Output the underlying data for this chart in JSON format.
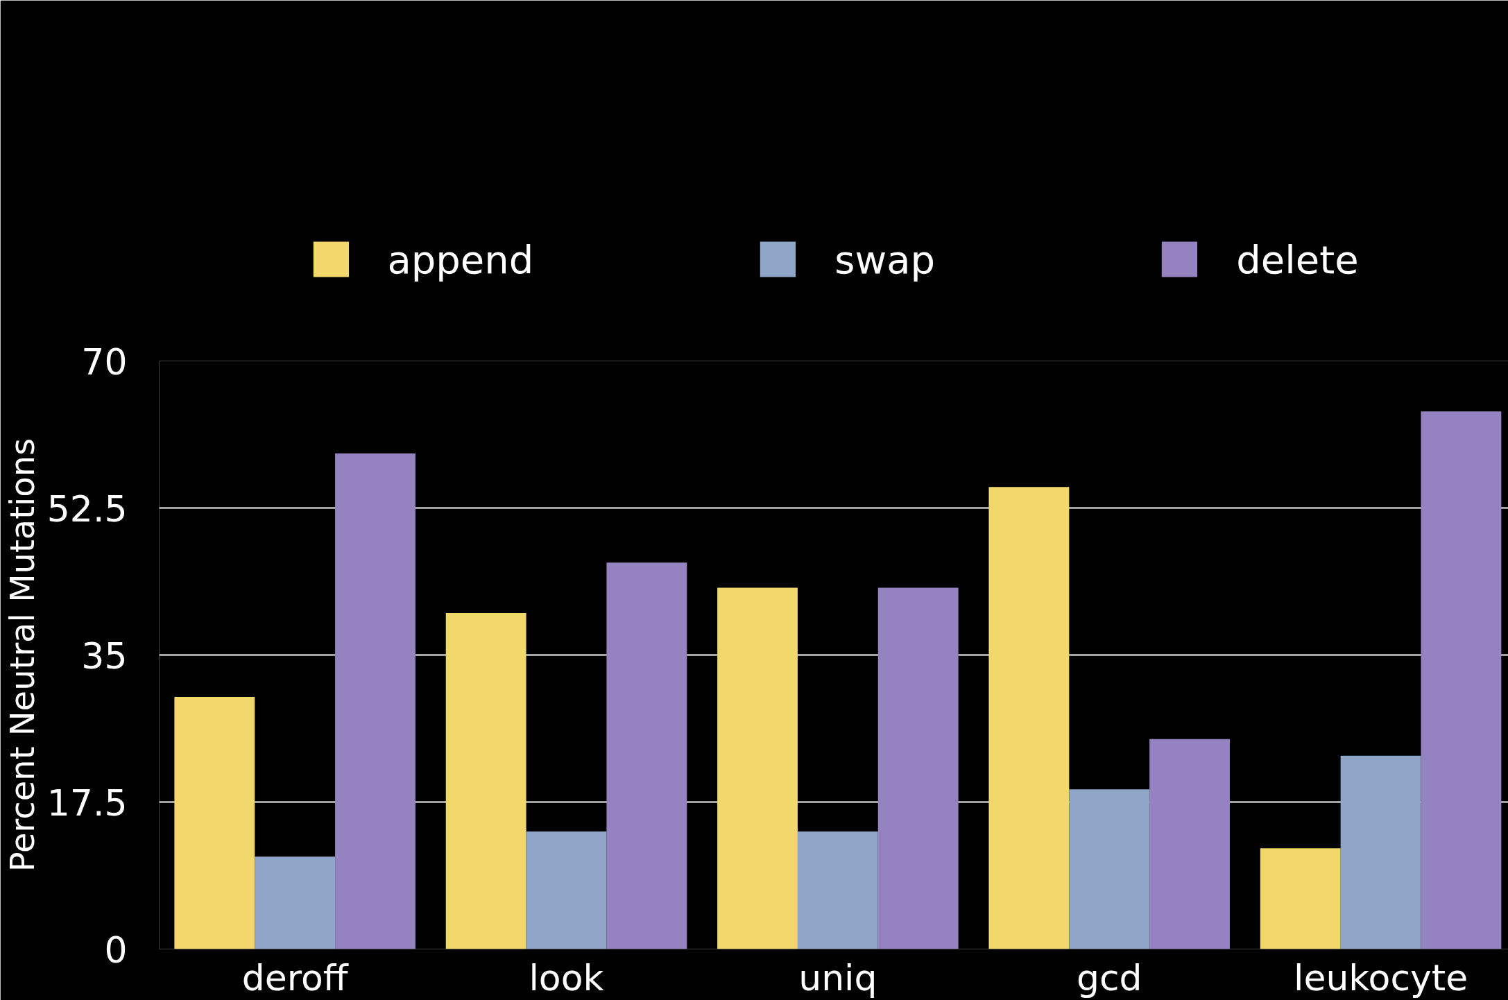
{
  "chart_data": {
    "type": "bar",
    "ylabel": "Percent Neutral Mutations",
    "categories": [
      "deroff",
      "look",
      "uniq",
      "gcd",
      "leukocyte"
    ],
    "series": [
      {
        "name": "append",
        "color": "#f2d76b",
        "values": [
          30,
          40,
          43,
          55,
          12
        ]
      },
      {
        "name": "swap",
        "color": "#8fa6c8",
        "values": [
          11,
          14,
          14,
          19,
          23
        ]
      },
      {
        "name": "delete",
        "color": "#9483c0",
        "values": [
          59,
          46,
          43,
          25,
          64
        ]
      }
    ],
    "ylim": [
      0,
      70
    ],
    "yticks": [
      0,
      17.5,
      35,
      52.5,
      70
    ],
    "grid": "y",
    "legend": "top"
  }
}
